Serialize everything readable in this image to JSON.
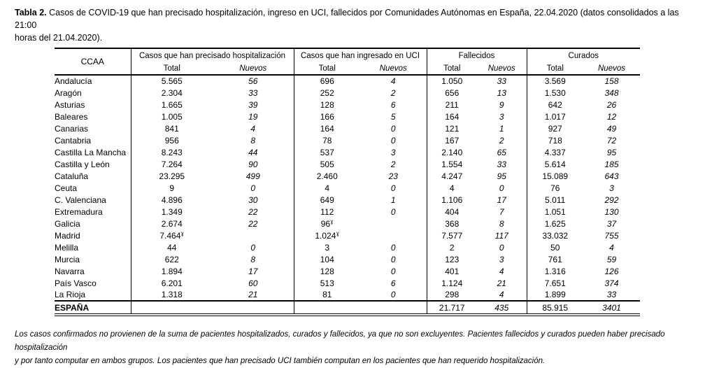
{
  "title": {
    "label": "Tabla 2.",
    "line1": "Casos de COVID-19 que han precisado hospitalización, ingreso en UCI, fallecidos  por Comunidades Autónomas en España, 22.04.2020 (datos consolidados a las 21:00",
    "line2": "horas del 21.04.2020)."
  },
  "table": {
    "ccaa_header": "CCAA",
    "groups": [
      {
        "label": "Casos que han precisado hospitalización",
        "sub": [
          "Total",
          "Nuevos"
        ]
      },
      {
        "label": "Casos que han ingresado en UCI",
        "sub": [
          "Total",
          "Nuevos"
        ]
      },
      {
        "label": "Fallecidos",
        "sub": [
          "Total",
          "Nuevos"
        ]
      },
      {
        "label": "Curados",
        "sub": [
          "Total",
          "Nuevos"
        ]
      }
    ],
    "footnote_marker": "ɣ",
    "rows": [
      [
        "Andalucía",
        "5.565",
        "56",
        "696",
        "4",
        "1.050",
        "33",
        "3.569",
        "158"
      ],
      [
        "Aragón",
        "2.304",
        "33",
        "252",
        "2",
        "656",
        "13",
        "1.530",
        "348"
      ],
      [
        "Asturias",
        "1.665",
        "39",
        "128",
        "6",
        "211",
        "9",
        "642",
        "26"
      ],
      [
        "Baleares",
        "1.005",
        "19",
        "166",
        "5",
        "164",
        "3",
        "1.017",
        "12"
      ],
      [
        "Canarias",
        "841",
        "4",
        "164",
        "0",
        "121",
        "1",
        "927",
        "49"
      ],
      [
        "Cantabria",
        "956",
        "8",
        "78",
        "0",
        "167",
        "2",
        "718",
        "72"
      ],
      [
        "Castilla La Mancha",
        "8.243",
        "44",
        "537",
        "3",
        "2.140",
        "65",
        "4.337",
        "95"
      ],
      [
        "Castilla y León",
        "7.264",
        "90",
        "505",
        "2",
        "1.554",
        "33",
        "5.614",
        "185"
      ],
      [
        "Cataluña",
        "23.295",
        "499",
        "2.460",
        "23",
        "4.247",
        "95",
        "15.089",
        "643"
      ],
      [
        "Ceuta",
        "9",
        "0",
        "4",
        "0",
        "4",
        "0",
        "76",
        "3"
      ],
      [
        "C. Valenciana",
        "4.896",
        "30",
        "649",
        "1",
        "1.106",
        "17",
        "5.011",
        "292"
      ],
      [
        "Extremadura",
        "1.349",
        "22",
        "112",
        "0",
        "404",
        "7",
        "1.051",
        "130"
      ],
      [
        "Galicia",
        "2.674",
        "22",
        "96^ɣ",
        "",
        "368",
        "8",
        "1.625",
        "37"
      ],
      [
        "Madrid",
        "7.464^ɣ",
        "",
        "1.024^ɣ",
        "",
        "7.577",
        "117",
        "33.032",
        "755"
      ],
      [
        "Melilla",
        "44",
        "0",
        "3",
        "0",
        "2",
        "0",
        "50",
        "4"
      ],
      [
        "Murcia",
        "622",
        "8",
        "104",
        "0",
        "123",
        "3",
        "761",
        "59"
      ],
      [
        "Navarra",
        "1.894",
        "17",
        "128",
        "0",
        "401",
        "4",
        "1.316",
        "126"
      ],
      [
        "País Vasco",
        "6.201",
        "60",
        "513",
        "6",
        "1.124",
        "21",
        "7.651",
        "374"
      ],
      [
        "La Rioja",
        "1.318",
        "21",
        "81",
        "0",
        "298",
        "4",
        "1.899",
        "33"
      ]
    ],
    "total_row": [
      "ESPAÑA",
      "",
      "",
      "",
      "",
      "21.717",
      "435",
      "85.915",
      "3401"
    ]
  },
  "footnote": {
    "line1": "Los casos confirmados no provienen de la suma de pacientes hospitalizados, curados y fallecidos, ya que no son excluyentes. Pacientes fallecidos y curados pueden haber precisado hospitalización",
    "line2": "y por tanto computar en ambos grupos. Los pacientes que han precisado UCI también computan en los pacientes que han requerido hospitalización."
  }
}
